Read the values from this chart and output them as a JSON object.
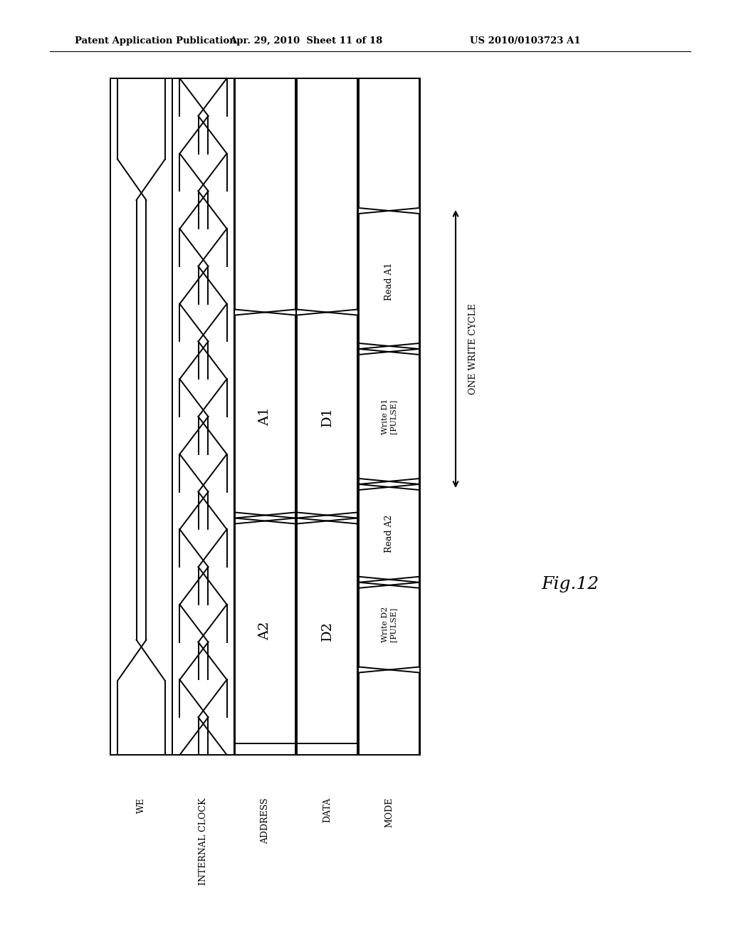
{
  "header_left": "Patent Application Publication",
  "header_center": "Apr. 29, 2010  Sheet 11 of 18",
  "header_right": "US 2010/0103723 A1",
  "bg_color": "#ffffff",
  "line_color": "#000000",
  "fig_label": "Fig.12",
  "signal_labels": [
    "WE",
    "INTERNAL CLOCK",
    "ADDRESS",
    "DATA",
    "MODE"
  ],
  "one_write_cycle_label": "ONE WRITE CYCLE",
  "lw": 1.4
}
